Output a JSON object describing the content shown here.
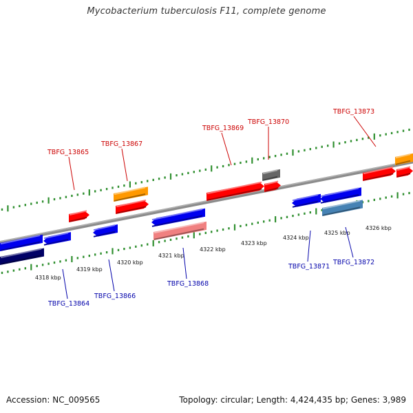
{
  "title": "Mycobacterium tuberculosis F11, complete genome",
  "footer": {
    "accession": "Accession: NC_009565",
    "summary": "Topology: circular; Length: 4,424,435 bp; Genes: 3,989"
  },
  "colors": {
    "backbone": "#8c8c8c",
    "tick": "#2f8f2f",
    "forward_gene": "#ff0000",
    "reverse_gene": "#0000ee",
    "forward_label": "#cc0000",
    "reverse_label": "#0000aa",
    "orange_feature": "#ff9900",
    "gray_feature": "#666666",
    "pink_feature": "#f08080",
    "steel_feature": "#4682b4",
    "navy_feature": "#000066"
  },
  "scale": {
    "unit": "kbp",
    "ticks": [
      {
        "label": "4318 kbp"
      },
      {
        "label": "4319 kbp"
      },
      {
        "label": "4320 kbp"
      },
      {
        "label": "4321 kbp"
      },
      {
        "label": "4322 kbp"
      },
      {
        "label": "4323 kbp"
      },
      {
        "label": "4324 kbp"
      },
      {
        "label": "4325 kbp"
      },
      {
        "label": "4326 kbp"
      }
    ]
  },
  "genes": {
    "forward": [
      {
        "name": "TBFG_13865"
      },
      {
        "name": "TBFG_13867"
      },
      {
        "name": "TBFG_13869"
      },
      {
        "name": "TBFG_13870"
      },
      {
        "name": "TBFG_13873"
      }
    ],
    "reverse": [
      {
        "name": "TBFG_13864"
      },
      {
        "name": "TBFG_13866"
      },
      {
        "name": "TBFG_13868"
      },
      {
        "name": "TBFG_13871"
      },
      {
        "name": "TBFG_13872"
      }
    ]
  }
}
